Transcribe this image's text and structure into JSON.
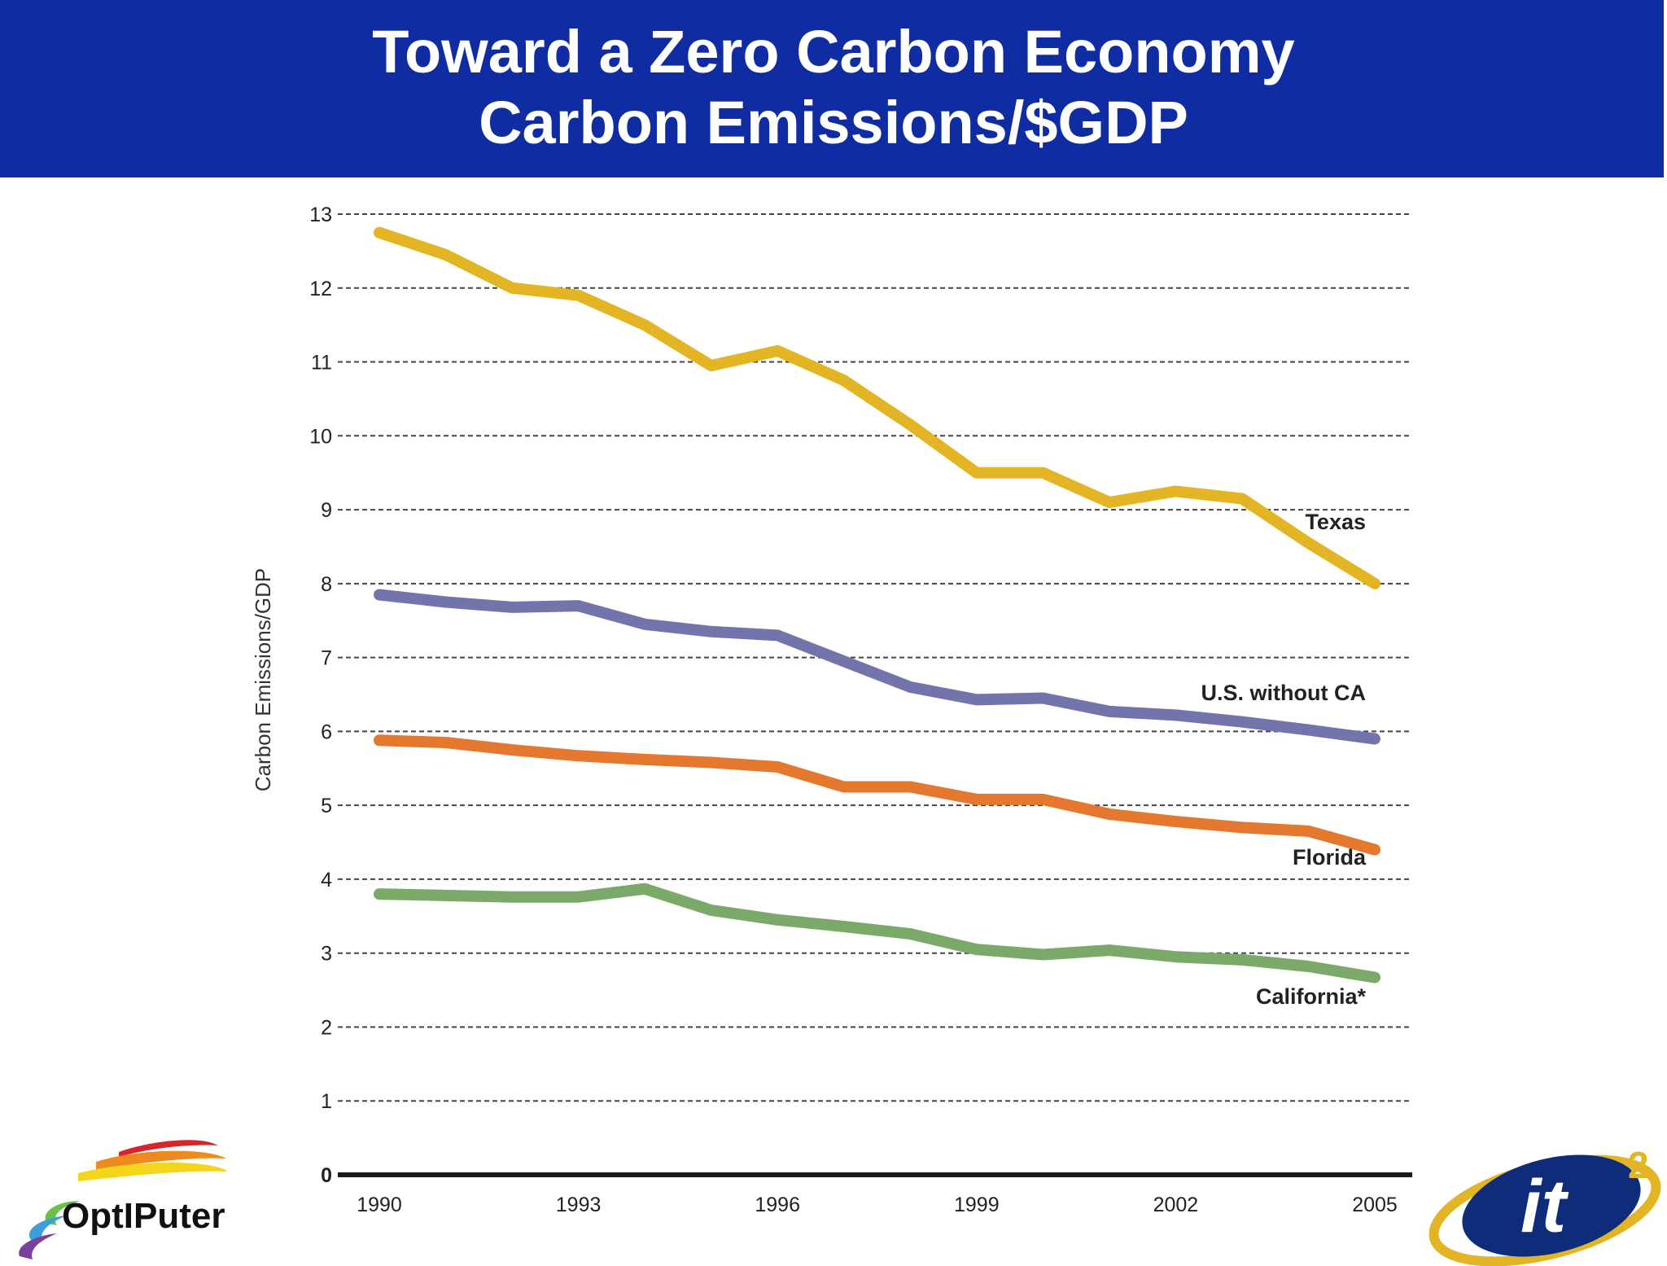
{
  "slide": {
    "title_line1": "Toward a Zero Carbon Economy",
    "title_line2": "Carbon Emissions/$GDP"
  },
  "logos": {
    "left": "OptIPuter",
    "right": "it2"
  },
  "colors": {
    "banner": "#0f2ca3",
    "texas": "#e3b524",
    "us_without_ca": "#7474ad",
    "florida": "#e5782f",
    "california": "#7aa96a"
  },
  "chart_data": {
    "type": "line",
    "title": "",
    "xlabel": "",
    "ylabel": "Carbon Emissions/GDP",
    "ylim": [
      0,
      13
    ],
    "xlim": [
      1990,
      2005
    ],
    "yticks": [
      0,
      1,
      2,
      3,
      4,
      5,
      6,
      7,
      8,
      9,
      10,
      11,
      12,
      13
    ],
    "xticks": [
      1990,
      1993,
      1996,
      1999,
      2002,
      2005
    ],
    "grid": true,
    "x": [
      1990,
      1991,
      1992,
      1993,
      1994,
      1995,
      1996,
      1997,
      1998,
      1999,
      2000,
      2001,
      2002,
      2003,
      2004,
      2005
    ],
    "series": [
      {
        "name": "Texas",
        "values": [
          12.75,
          12.45,
          12.0,
          11.9,
          11.5,
          10.95,
          11.15,
          10.75,
          10.15,
          9.5,
          9.5,
          9.1,
          9.25,
          9.15,
          8.55,
          8.0
        ]
      },
      {
        "name": "U.S. without CA",
        "values": [
          7.85,
          7.75,
          7.68,
          7.7,
          7.45,
          7.35,
          7.3,
          6.95,
          6.6,
          6.43,
          6.45,
          6.27,
          6.22,
          6.13,
          6.02,
          5.9
        ]
      },
      {
        "name": "Florida",
        "values": [
          5.88,
          5.85,
          5.75,
          5.67,
          5.62,
          5.58,
          5.52,
          5.25,
          5.25,
          5.08,
          5.08,
          4.88,
          4.78,
          4.7,
          4.65,
          4.4
        ]
      },
      {
        "name": "California*",
        "values": [
          3.8,
          3.78,
          3.76,
          3.76,
          3.87,
          3.58,
          3.45,
          3.36,
          3.26,
          3.05,
          2.98,
          3.04,
          2.95,
          2.91,
          2.82,
          2.67
        ]
      }
    ]
  }
}
